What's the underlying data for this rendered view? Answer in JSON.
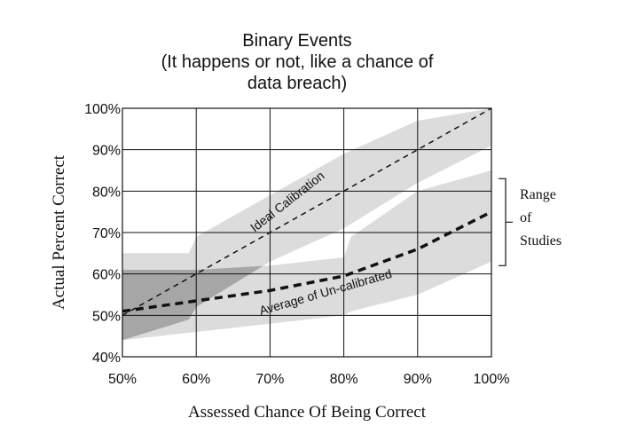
{
  "chart_data": {
    "type": "line",
    "title_lines": [
      "Binary Events",
      "(It happens or not, like a chance of",
      "data breach)"
    ],
    "xlabel": "Assessed Chance Of Being Correct",
    "ylabel": "Actual Percent Correct",
    "xlim": [
      50,
      100
    ],
    "ylim": [
      40,
      100
    ],
    "x_ticks": [
      50,
      60,
      70,
      80,
      90,
      100
    ],
    "x_tick_labels": [
      "50%",
      "60%",
      "70%",
      "80%",
      "90%",
      "100%"
    ],
    "y_ticks": [
      40,
      50,
      60,
      70,
      80,
      90,
      100
    ],
    "y_tick_labels": [
      "40%",
      "50%",
      "60%",
      "70%",
      "80%",
      "90%",
      "100%"
    ],
    "grid": true,
    "series": [
      {
        "name": "Ideal Calibration",
        "style": "dashed-thin",
        "x": [
          50,
          100
        ],
        "y": [
          50,
          100
        ]
      },
      {
        "name": "Average of Un-calibrated",
        "style": "dashed-thick",
        "x": [
          50,
          60,
          70,
          80,
          90,
          100
        ],
        "y": [
          51,
          53.5,
          56,
          59.5,
          66,
          75
        ]
      }
    ],
    "bands": [
      {
        "x": [
          50,
          59,
          60,
          70,
          80,
          90,
          100
        ],
        "upper": [
          65,
          65,
          69,
          79,
          89,
          97,
          100
        ],
        "lower": [
          44,
          49,
          52,
          63,
          71,
          82,
          91
        ],
        "color": "#dcdcdc"
      },
      {
        "x": [
          50,
          60,
          70,
          80,
          81,
          90,
          100
        ],
        "upper": [
          61,
          61,
          62,
          64,
          69,
          80,
          85
        ],
        "lower": [
          44,
          46,
          48,
          50,
          51,
          55,
          63
        ],
        "color": "#dcdcdc"
      }
    ],
    "range_annotation": {
      "lines": [
        "Range",
        "of",
        "Studies"
      ],
      "y_from": 62,
      "y_to": 83
    },
    "colors": {
      "band": "#dcdcdc",
      "overlap": "#a6a6a6",
      "line": "#111111",
      "grid": "#111111"
    }
  }
}
